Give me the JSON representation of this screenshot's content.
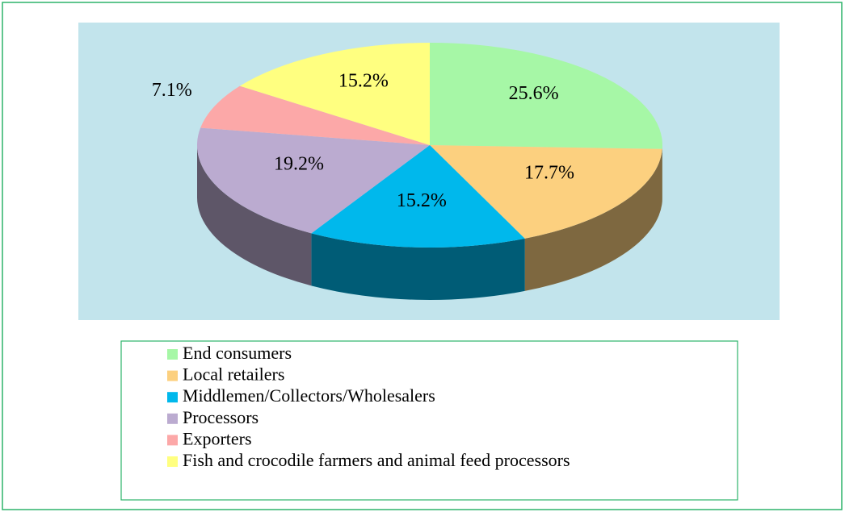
{
  "chart_data": {
    "type": "pie",
    "categories": [
      "End consumers",
      "Local retailers",
      "Middlemen/Collectors/Wholesalers",
      "Processors",
      "Exporters",
      "Fish and crocodile farmers and animal feed processors"
    ],
    "values": [
      25.6,
      17.7,
      15.2,
      19.2,
      7.1,
      15.2
    ],
    "value_labels": [
      "25.6%",
      "17.7%",
      "15.2%",
      "19.2%",
      "7.1%",
      "15.2%"
    ],
    "colors": [
      "#a6f7a6",
      "#fcd07f",
      "#00b8ec",
      "#bbabd0",
      "#fca8a8",
      "#ffff80"
    ]
  }
}
